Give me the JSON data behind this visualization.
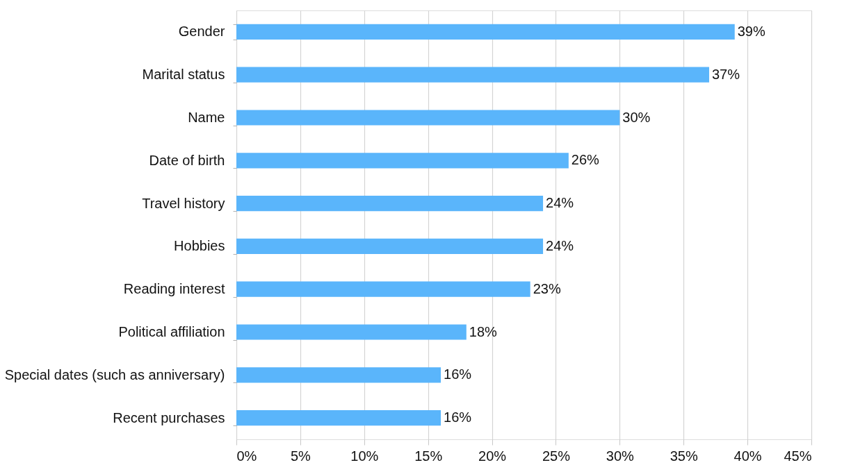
{
  "chart_data": {
    "type": "bar",
    "orientation": "horizontal",
    "categories": [
      "Gender",
      "Marital status",
      "Name",
      "Date of birth",
      "Travel history",
      "Hobbies",
      "Reading interest",
      "Political affiliation",
      "Special dates (such as anniversary)",
      "Recent purchases"
    ],
    "values": [
      39,
      37,
      30,
      26,
      24,
      24,
      23,
      18,
      16,
      16
    ],
    "value_labels": [
      "39%",
      "37%",
      "30%",
      "26%",
      "24%",
      "24%",
      "23%",
      "18%",
      "16%",
      "16%"
    ],
    "color": "#5ab5fb",
    "xlim": [
      0,
      45
    ],
    "xticks": [
      {
        "value": 0,
        "label": "0%"
      },
      {
        "value": 5,
        "label": "5%"
      },
      {
        "value": 10,
        "label": "10%"
      },
      {
        "value": 15,
        "label": "15%"
      },
      {
        "value": 20,
        "label": "20%"
      },
      {
        "value": 25,
        "label": "25%"
      },
      {
        "value": 30,
        "label": "30%"
      },
      {
        "value": 35,
        "label": "35%"
      },
      {
        "value": 40,
        "label": "40%"
      },
      {
        "value": 45,
        "label": "45%"
      }
    ],
    "grid": "x"
  }
}
